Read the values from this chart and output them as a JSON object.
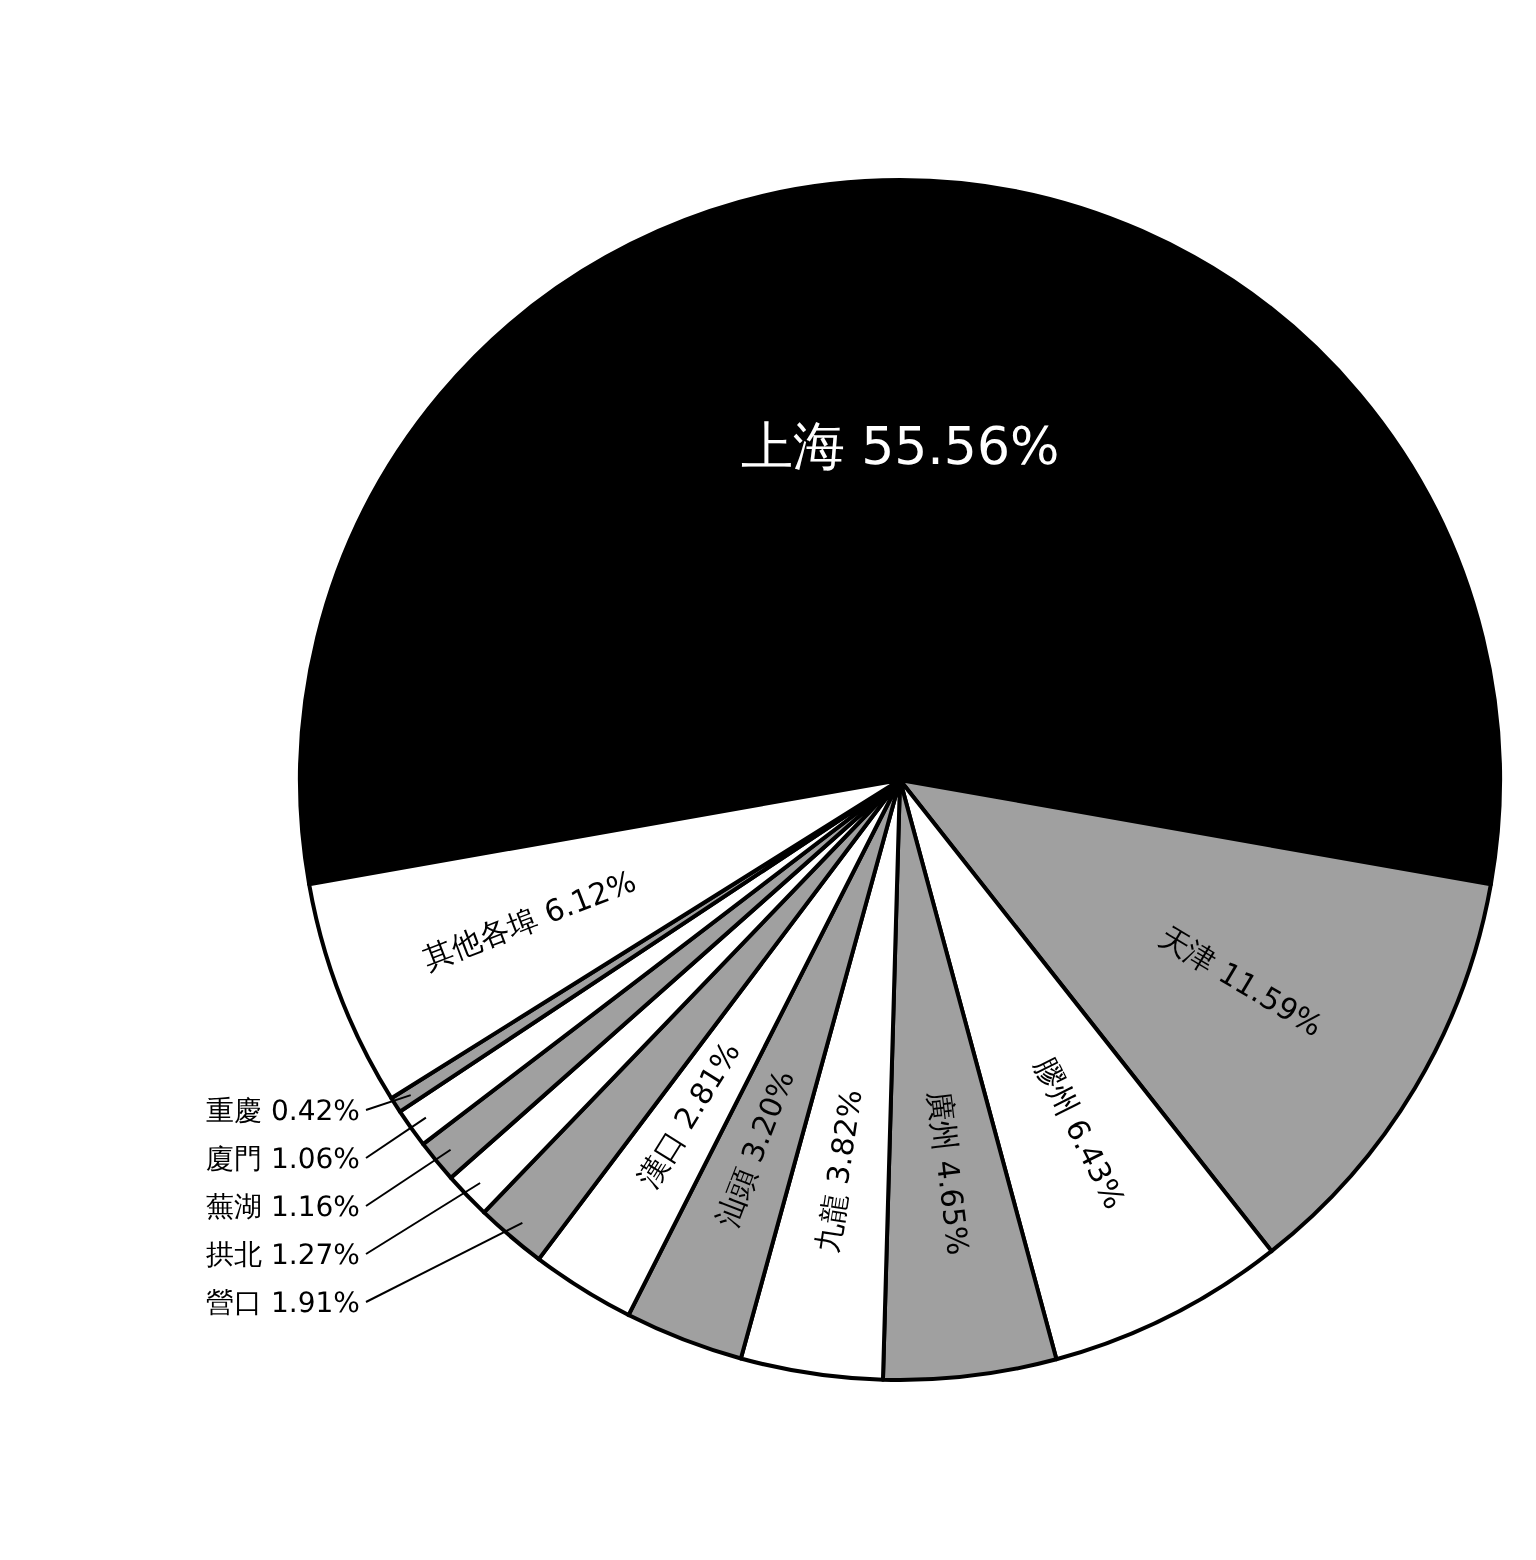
{
  "chart_data": {
    "type": "pie",
    "categories": [
      "上海",
      "天津",
      "膠州",
      "廣州",
      "九龍",
      "汕頭",
      "漢口",
      "營口",
      "拱北",
      "蕪湖",
      "廈門",
      "重慶",
      "其他各埠"
    ],
    "values": [
      55.56,
      11.59,
      6.43,
      4.65,
      3.82,
      3.2,
      2.81,
      1.91,
      1.27,
      1.16,
      1.06,
      0.42,
      6.12
    ],
    "value_labels": [
      "55.56%",
      "11.59%",
      "6.43%",
      "4.65%",
      "3.82%",
      "3.20%",
      "2.81%",
      "1.91%",
      "1.27%",
      "1.16%",
      "1.06%",
      "0.42%",
      "6.12%"
    ],
    "colors": [
      "#000000",
      "#a0a0a0",
      "#ffffff",
      "#a0a0a0",
      "#ffffff",
      "#a0a0a0",
      "#ffffff",
      "#a0a0a0",
      "#ffffff",
      "#a0a0a0",
      "#ffffff",
      "#a0a0a0",
      "#ffffff"
    ]
  }
}
